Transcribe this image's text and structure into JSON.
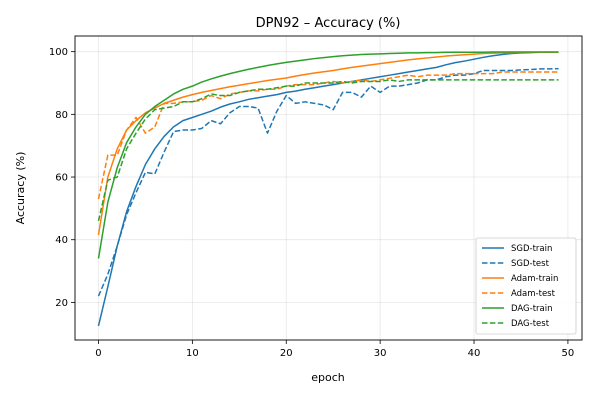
{
  "chart_data": {
    "type": "line",
    "title": "DPN92 – Accuracy (%)",
    "xlabel": "epoch",
    "ylabel": "Accuracy (%)",
    "xlim": [
      -2.5,
      51.5
    ],
    "ylim": [
      8,
      105
    ],
    "xticks": [
      0,
      10,
      20,
      30,
      40,
      50
    ],
    "yticks": [
      20,
      40,
      60,
      80,
      100
    ],
    "grid": true,
    "legend_position": "lower-right",
    "series": [
      {
        "name": "SGD-train",
        "color": "#1f77b4",
        "dash": "solid",
        "values": [
          12.5,
          25,
          38,
          49,
          57,
          64,
          69,
          73,
          76,
          78,
          79,
          80,
          81,
          82.3,
          83.3,
          84,
          84.8,
          85.3,
          85.8,
          86.3,
          87,
          87.4,
          88,
          88.5,
          89,
          89.5,
          90,
          90.5,
          91,
          91.5,
          92,
          92.5,
          93,
          93.5,
          94,
          94.5,
          95,
          95.8,
          96.5,
          97,
          97.6,
          98.2,
          98.7,
          99.1,
          99.4,
          99.6,
          99.7,
          99.8,
          99.8,
          99.8
        ]
      },
      {
        "name": "SGD-test",
        "color": "#1f77b4",
        "dash": "dashed",
        "values": [
          22,
          29,
          38,
          48,
          55,
          61.5,
          61,
          68,
          74.5,
          75,
          75,
          75.5,
          78,
          77,
          80.5,
          82.5,
          82.5,
          82,
          74,
          81,
          86,
          83.5,
          84,
          83.5,
          83,
          81.5,
          87,
          87,
          85.5,
          89,
          87,
          89,
          89,
          89.5,
          90,
          91,
          91,
          92,
          92.5,
          92.5,
          93,
          94,
          94,
          94,
          94,
          94.2,
          94.3,
          94.5,
          94.5,
          94.6
        ]
      },
      {
        "name": "Adam-train",
        "color": "#ff7f0e",
        "dash": "solid",
        "values": [
          41.5,
          60,
          69,
          75,
          78,
          80.5,
          82,
          83.5,
          84.5,
          85.5,
          86.3,
          87,
          87.6,
          88.2,
          88.8,
          89.3,
          89.8,
          90.3,
          90.8,
          91.2,
          91.6,
          92.2,
          92.7,
          93.2,
          93.6,
          94,
          94.5,
          95,
          95.4,
          95.8,
          96.2,
          96.6,
          97,
          97.4,
          97.7,
          98,
          98.3,
          98.6,
          98.8,
          99,
          99.2,
          99.4,
          99.5,
          99.6,
          99.7,
          99.8,
          99.8,
          99.8,
          99.8,
          99.8
        ]
      },
      {
        "name": "Adam-test",
        "color": "#ff7f0e",
        "dash": "dashed",
        "values": [
          53,
          67,
          67,
          75,
          79,
          74,
          76,
          83.5,
          83.5,
          84,
          84,
          84.5,
          86,
          85,
          86.5,
          87,
          87.5,
          87.5,
          88,
          88,
          89,
          89.5,
          89.5,
          89.5,
          90,
          90.5,
          90,
          90.5,
          91,
          90.5,
          91,
          91.5,
          92,
          92.5,
          92,
          92.5,
          92.5,
          92.5,
          93,
          93,
          93,
          93,
          93,
          93.5,
          93.5,
          93.5,
          93.5,
          93.5,
          93.5,
          93.5
        ]
      },
      {
        "name": "DAG-train",
        "color": "#2ca02c",
        "dash": "solid",
        "values": [
          34,
          52,
          63,
          71,
          76,
          80,
          82.5,
          84.5,
          86.5,
          88,
          89,
          90.3,
          91.3,
          92.2,
          93,
          93.7,
          94.4,
          95,
          95.6,
          96.1,
          96.6,
          97,
          97.4,
          97.8,
          98.1,
          98.4,
          98.7,
          98.9,
          99.1,
          99.2,
          99.3,
          99.4,
          99.5,
          99.6,
          99.6,
          99.7,
          99.7,
          99.8,
          99.8,
          99.8,
          99.8,
          99.8,
          99.9,
          99.9,
          99.9,
          99.9,
          99.9,
          99.9,
          99.9,
          99.9
        ]
      },
      {
        "name": "DAG-test",
        "color": "#2ca02c",
        "dash": "dashed",
        "values": [
          46,
          59,
          60,
          69,
          74,
          78.5,
          81.5,
          82,
          82.5,
          84,
          84,
          85,
          86.5,
          86,
          86,
          87,
          87.5,
          88,
          88,
          88.5,
          89,
          89,
          90,
          90,
          90,
          90,
          90.5,
          90,
          90.5,
          90.5,
          90.5,
          91,
          90.5,
          91,
          91,
          91,
          91,
          91,
          91,
          91,
          91,
          91,
          91,
          91,
          91,
          91,
          91,
          91,
          91,
          91
        ]
      }
    ]
  }
}
